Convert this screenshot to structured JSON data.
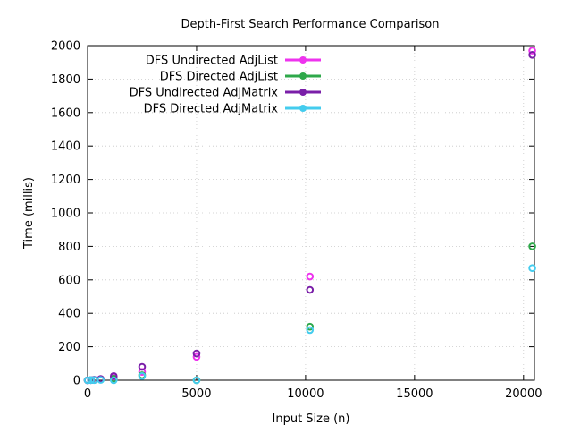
{
  "chart_data": {
    "type": "scatter",
    "title": "Depth-First Search Performance Comparison",
    "xlabel": "Input Size (n)",
    "ylabel": "Time (millis)",
    "xlim": [
      0,
      20500
    ],
    "ylim": [
      0,
      2000
    ],
    "xticks": [
      0,
      5000,
      10000,
      15000,
      20000
    ],
    "yticks": [
      0,
      200,
      400,
      600,
      800,
      1000,
      1200,
      1400,
      1600,
      1800,
      2000
    ],
    "grid": true,
    "legend_position": "top-left",
    "series": [
      {
        "name": "DFS Undirected AdjList",
        "color": "#ee33ee",
        "x": [
          0,
          150,
          300,
          600,
          1200,
          2500,
          5000,
          10200,
          20400
        ],
        "y": [
          0,
          1,
          2,
          5,
          15,
          50,
          140,
          620,
          1970
        ]
      },
      {
        "name": "DFS Directed AdjList",
        "color": "#2ea84a",
        "x": [
          0,
          150,
          300,
          600,
          1200,
          2500,
          5000,
          10200,
          20400
        ],
        "y": [
          0,
          1,
          2,
          4,
          10,
          30,
          0,
          320,
          800
        ]
      },
      {
        "name": "DFS Undirected AdjMatrix",
        "color": "#7a1fa8",
        "x": [
          0,
          150,
          300,
          600,
          1200,
          2500,
          5000,
          10200,
          20400
        ],
        "y": [
          0,
          1,
          3,
          8,
          25,
          80,
          160,
          540,
          1945
        ]
      },
      {
        "name": "DFS Directed AdjMatrix",
        "color": "#44ccee",
        "x": [
          0,
          150,
          300,
          600,
          1200,
          2500,
          5000,
          10200,
          20400
        ],
        "y": [
          0,
          1,
          1,
          2,
          0,
          25,
          0,
          300,
          670
        ]
      }
    ]
  }
}
